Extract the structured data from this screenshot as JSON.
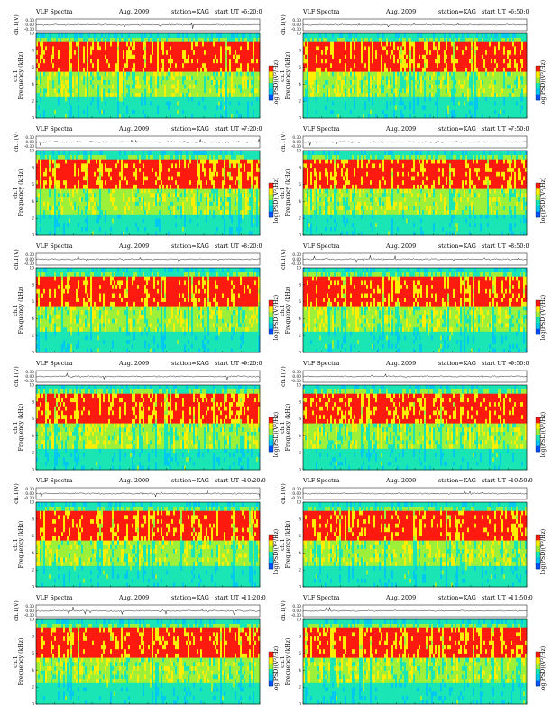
{
  "header": {
    "title": "VLF Spectra",
    "date": "Aug. 2009",
    "station": "station=KAG",
    "start_prefix": "start UT ="
  },
  "axes": {
    "ylabel_top": "ch.1(V)",
    "ylabel_spec_line1": "ch.1",
    "ylabel_spec_line2": "Frequency (kHz)",
    "xlabel": "Time (sec)",
    "colorbar_label": "log(PSD)(V²/Hz)"
  },
  "chart_data": [
    {
      "type": "heatmap",
      "start_ut": "6:20:0",
      "xlim": [
        0,
        120
      ],
      "ylim": [
        0,
        10
      ],
      "top_ylim": [
        -0.3,
        0.3
      ],
      "x_ticks": [
        0,
        10,
        20,
        30,
        40,
        50,
        60,
        70,
        80,
        90,
        100,
        110,
        120
      ],
      "y_ticks": [
        0,
        2,
        4,
        6,
        8,
        10
      ],
      "top_ticks": [
        "0.30",
        "0.00",
        "-0.30"
      ]
    },
    {
      "type": "heatmap",
      "start_ut": "6:50:0",
      "xlim": [
        0,
        120
      ],
      "ylim": [
        0,
        10
      ],
      "top_ylim": [
        -0.3,
        0.3
      ],
      "x_ticks": [
        0,
        10,
        20,
        30,
        40,
        50,
        60,
        70,
        80,
        90,
        100,
        110,
        120
      ],
      "y_ticks": [
        0,
        2,
        4,
        6,
        8,
        10
      ],
      "top_ticks": [
        "0.30",
        "0.00",
        "-0.30"
      ]
    },
    {
      "type": "heatmap",
      "start_ut": "7:20:0",
      "xlim": [
        0,
        120
      ],
      "ylim": [
        0,
        10
      ],
      "top_ylim": [
        -0.3,
        0.3
      ],
      "x_ticks": [
        0,
        10,
        20,
        30,
        40,
        50,
        60,
        70,
        80,
        90,
        100,
        110,
        120
      ],
      "y_ticks": [
        0,
        2,
        4,
        6,
        8,
        10
      ],
      "top_ticks": [
        "0.30",
        "0.00",
        "-0.30"
      ]
    },
    {
      "type": "heatmap",
      "start_ut": "7:50:0",
      "xlim": [
        0,
        120
      ],
      "ylim": [
        0,
        10
      ],
      "top_ylim": [
        -0.3,
        0.3
      ],
      "x_ticks": [
        0,
        10,
        20,
        30,
        40,
        50,
        60,
        70,
        80,
        90,
        100,
        110,
        120
      ],
      "y_ticks": [
        0,
        2,
        4,
        6,
        8,
        10
      ],
      "top_ticks": [
        "0.30",
        "0.00",
        "-0.30"
      ]
    },
    {
      "type": "heatmap",
      "start_ut": "8:20:0",
      "xlim": [
        0,
        120
      ],
      "ylim": [
        0,
        10
      ],
      "top_ylim": [
        -0.3,
        0.3
      ],
      "x_ticks": [
        0,
        10,
        20,
        30,
        40,
        50,
        60,
        70,
        80,
        90,
        100,
        110,
        120
      ],
      "y_ticks": [
        0,
        2,
        4,
        6,
        8,
        10
      ],
      "top_ticks": [
        "0.30",
        "0.00",
        "-0.30"
      ]
    },
    {
      "type": "heatmap",
      "start_ut": "8:50:0",
      "xlim": [
        0,
        120
      ],
      "ylim": [
        0,
        10
      ],
      "top_ylim": [
        -0.3,
        0.3
      ],
      "x_ticks": [
        0,
        10,
        20,
        30,
        40,
        50,
        60,
        70,
        80,
        90,
        100,
        110,
        120
      ],
      "y_ticks": [
        0,
        2,
        4,
        6,
        8,
        10
      ],
      "top_ticks": [
        "0.30",
        "0.00",
        "-0.30"
      ]
    },
    {
      "type": "heatmap",
      "start_ut": "9:20:0",
      "xlim": [
        0,
        120
      ],
      "ylim": [
        0,
        10
      ],
      "top_ylim": [
        -0.3,
        0.3
      ],
      "x_ticks": [
        0,
        10,
        20,
        30,
        40,
        50,
        60,
        70,
        80,
        90,
        100,
        110,
        120
      ],
      "y_ticks": [
        0,
        2,
        4,
        6,
        8,
        10
      ],
      "top_ticks": [
        "0.30",
        "0.00",
        "-0.30"
      ]
    },
    {
      "type": "heatmap",
      "start_ut": "9:50:0",
      "xlim": [
        0,
        120
      ],
      "ylim": [
        0,
        10
      ],
      "top_ylim": [
        -0.3,
        0.3
      ],
      "x_ticks": [
        0,
        10,
        20,
        30,
        40,
        50,
        60,
        70,
        80,
        90,
        100,
        110,
        120
      ],
      "y_ticks": [
        0,
        2,
        4,
        6,
        8,
        10
      ],
      "top_ticks": [
        "0.30",
        "0.00",
        "-0.30"
      ]
    },
    {
      "type": "heatmap",
      "start_ut": "10:20:0",
      "xlim": [
        0,
        120
      ],
      "ylim": [
        0,
        10
      ],
      "top_ylim": [
        -0.3,
        0.3
      ],
      "x_ticks": [
        0,
        10,
        20,
        30,
        40,
        50,
        60,
        70,
        80,
        90,
        100,
        110,
        120
      ],
      "y_ticks": [
        0,
        2,
        4,
        6,
        8,
        10
      ],
      "top_ticks": [
        "0.30",
        "0.00",
        "-0.30"
      ]
    },
    {
      "type": "heatmap",
      "start_ut": "10:50:0",
      "xlim": [
        0,
        120
      ],
      "ylim": [
        0,
        10
      ],
      "top_ylim": [
        -0.3,
        0.3
      ],
      "x_ticks": [
        0,
        10,
        20,
        30,
        40,
        50,
        60,
        70,
        80,
        90,
        100,
        110,
        120
      ],
      "y_ticks": [
        0,
        2,
        4,
        6,
        8,
        10
      ],
      "top_ticks": [
        "0.30",
        "0.00",
        "-0.30"
      ]
    },
    {
      "type": "heatmap",
      "start_ut": "11:20:0",
      "xlim": [
        0,
        120
      ],
      "ylim": [
        0,
        10
      ],
      "top_ylim": [
        -0.3,
        0.3
      ],
      "x_ticks": [
        0,
        10,
        20,
        30,
        40,
        50,
        60,
        70,
        80,
        90,
        100,
        110,
        120
      ],
      "y_ticks": [
        0,
        2,
        4,
        6,
        8,
        10
      ],
      "top_ticks": [
        "0.30",
        "0.00",
        "-0.30"
      ]
    },
    {
      "type": "heatmap",
      "start_ut": "11:50:0",
      "xlim": [
        0,
        120
      ],
      "ylim": [
        0,
        10
      ],
      "top_ylim": [
        -0.3,
        0.3
      ],
      "x_ticks": [
        0,
        10,
        20,
        30,
        40,
        50,
        60,
        70,
        80,
        90,
        100,
        110,
        120
      ],
      "y_ticks": [
        0,
        2,
        4,
        6,
        8,
        10
      ],
      "top_ticks": [
        "0.30",
        "0.00",
        "-0.30"
      ]
    }
  ],
  "colors": {
    "high": "#ff1a10",
    "mid_high": "#ffee00",
    "mid": "#9df03a",
    "low": "#19e6b4",
    "lowest": "#00c8f0",
    "floor": "#0050ff"
  }
}
